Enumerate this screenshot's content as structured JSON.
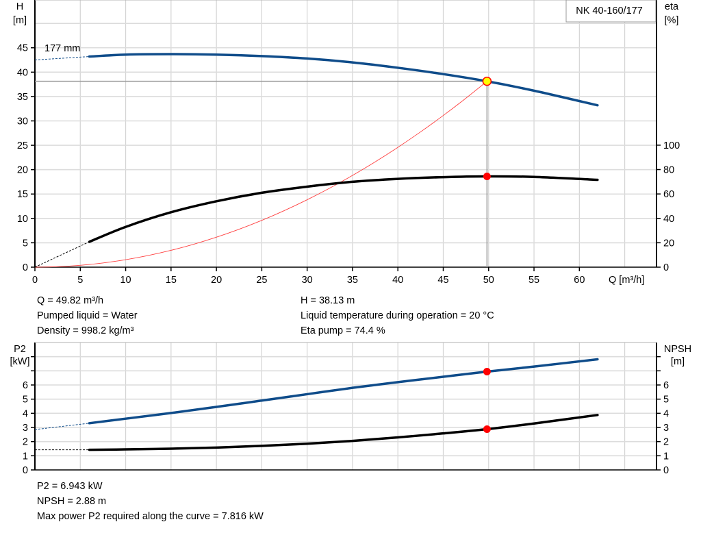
{
  "chart_data": [
    {
      "type": "line",
      "title": "NK 40-160/177",
      "impeller_label": "177 mm",
      "xlabel": "Q [m³/h]",
      "ylabel_left": [
        "H",
        "[m]"
      ],
      "ylabel_right": [
        "eta",
        "[%]"
      ],
      "xlim": [
        0,
        68.5
      ],
      "ylim_left": [
        0,
        54.8
      ],
      "ylim_right": [
        0,
        219
      ],
      "x_ticks": [
        0,
        5,
        10,
        15,
        20,
        25,
        30,
        35,
        40,
        45,
        50,
        55,
        60
      ],
      "y_ticks_left": [
        0,
        5,
        10,
        15,
        20,
        25,
        30,
        35,
        40,
        45
      ],
      "y_ticks_right": [
        0,
        20,
        40,
        60,
        80,
        100
      ],
      "grid": true,
      "colors": {
        "head": "#0f4c8a",
        "eta": "#000000",
        "system": "#ff4040",
        "duty_point": "#ffff00",
        "marker": "#ff0000"
      },
      "series": [
        {
          "key": "head",
          "axis": "left",
          "x": [
            6,
            10,
            15,
            20,
            25,
            30,
            35,
            40,
            45,
            49.82,
            55,
            62
          ],
          "y": [
            43.2,
            43.6,
            43.7,
            43.6,
            43.3,
            42.8,
            42.0,
            40.9,
            39.6,
            38.13,
            36.2,
            33.2
          ],
          "extrapolated": {
            "x": [
              0,
              6
            ],
            "y": [
              42.5,
              43.2
            ]
          }
        },
        {
          "key": "eta",
          "axis": "right",
          "x": [
            6,
            10,
            15,
            20,
            25,
            30,
            35,
            40,
            45,
            49.82,
            55,
            62
          ],
          "y": [
            20.8,
            33,
            45,
            54,
            61,
            66,
            70,
            72.4,
            73.8,
            74.4,
            74,
            71.6
          ],
          "extrapolated": {
            "x": [
              0,
              6
            ],
            "y": [
              0,
              20.8
            ]
          }
        },
        {
          "key": "system",
          "axis": "left",
          "type": "parabola",
          "through": [
            49.82,
            38.13
          ]
        }
      ],
      "duty_point": {
        "Q": 49.82,
        "H": 38.13,
        "eta": 74.4
      }
    },
    {
      "type": "line",
      "ylabel_left": [
        "P2",
        "[kW]"
      ],
      "ylabel_right": [
        "NPSH",
        "[m]"
      ],
      "xlim": [
        0,
        68.5
      ],
      "ylim": [
        0,
        9
      ],
      "x_ticks": [
        0,
        5,
        10,
        15,
        20,
        25,
        30,
        35,
        40,
        45,
        50,
        55,
        60
      ],
      "y_ticks": [
        0,
        1,
        2,
        3,
        4,
        5,
        6,
        7,
        8
      ],
      "y_tick_labels": [
        "0",
        "1",
        "2",
        "3",
        "4",
        "5",
        "6",
        "",
        ""
      ],
      "grid": true,
      "colors": {
        "p2": "#0f4c8a",
        "npsh": "#000000",
        "marker": "#ff0000"
      },
      "series": [
        {
          "key": "p2",
          "axis": "left",
          "x": [
            6,
            10,
            15,
            20,
            25,
            30,
            35,
            40,
            45,
            49.82,
            55,
            62
          ],
          "y": [
            3.3,
            3.62,
            4.02,
            4.45,
            4.9,
            5.35,
            5.8,
            6.2,
            6.58,
            6.943,
            7.3,
            7.816
          ],
          "extrapolated": {
            "x": [
              0,
              6
            ],
            "y": [
              2.85,
              3.3
            ]
          }
        },
        {
          "key": "npsh",
          "axis": "right",
          "x": [
            6,
            10,
            15,
            20,
            25,
            30,
            35,
            40,
            45,
            49.82,
            55,
            62
          ],
          "y": [
            1.42,
            1.45,
            1.5,
            1.58,
            1.7,
            1.85,
            2.05,
            2.3,
            2.58,
            2.88,
            3.28,
            3.88
          ],
          "extrapolated": {
            "x": [
              0,
              6
            ],
            "y": [
              1.42,
              1.42
            ]
          }
        }
      ],
      "duty_point": {
        "Q": 49.82,
        "P2": 6.943,
        "NPSH": 2.88
      }
    }
  ],
  "info_top": {
    "col1": [
      "Q = 49.82 m³/h",
      "Pumped liquid = Water",
      "Density = 998.2 kg/m³"
    ],
    "col2": [
      "H = 38.13 m",
      "Liquid temperature during operation = 20 °C",
      "Eta pump = 74.4 %"
    ]
  },
  "info_bottom": [
    "P2 = 6.943 kW",
    "NPSH = 2.88 m",
    "Max power P2 required along the curve = 7.816 kW"
  ]
}
